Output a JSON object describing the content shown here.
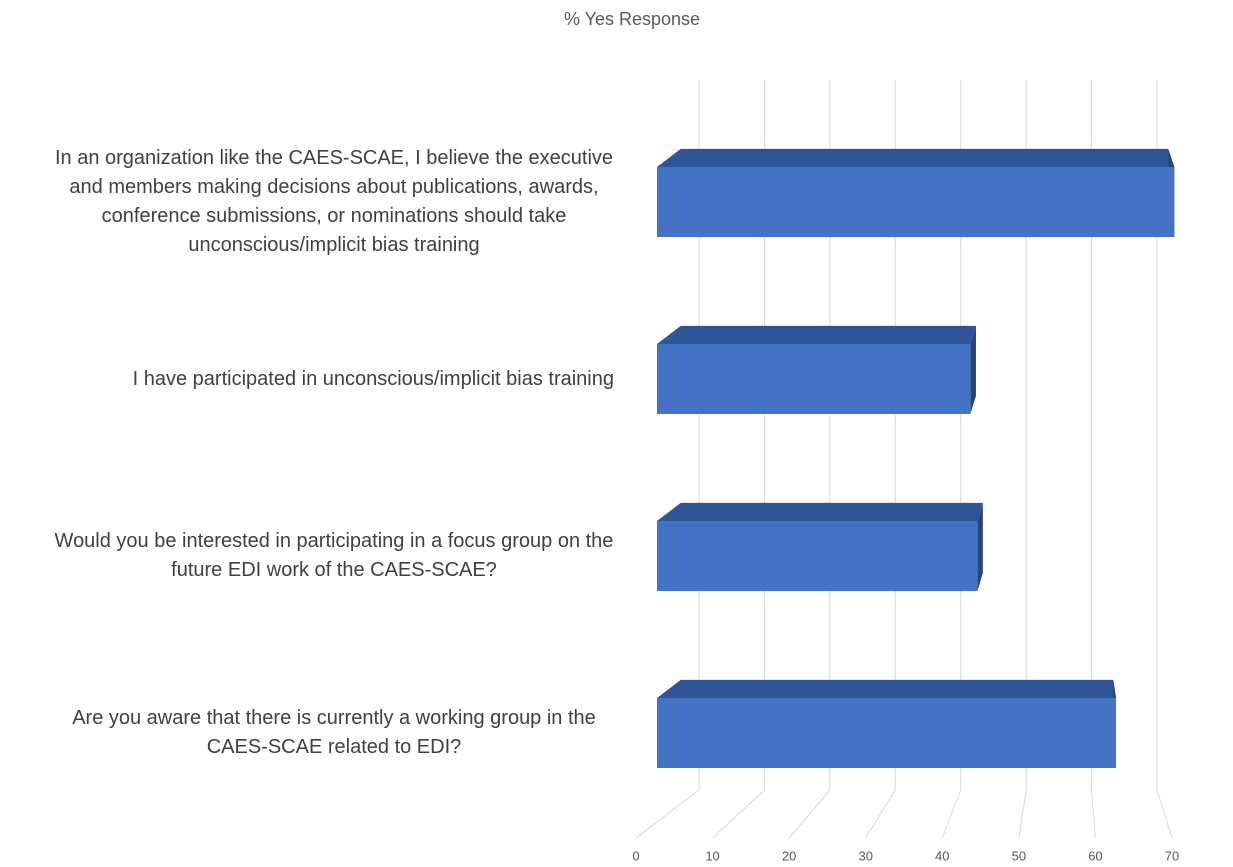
{
  "chart_data": {
    "type": "bar3d_horizontal",
    "title": "% Yes Response",
    "categories": [
      "In an organization like the CAES-SCAE, I believe the executive and members making decisions about publications, awards, conference submissions, or nominations should take unconscious/implicit bias training",
      "I have participated in unconscious/implicit bias training",
      "Would you be interested in participating in a focus group on the future EDI work of the CAES-SCAE?",
      "Are you aware that there is currently a working group in the CAES-SCAE related to EDI?"
    ],
    "values": [
      71,
      43,
      44,
      63
    ],
    "color": "#4472c4",
    "top_color": "#2f5597",
    "side_color": "#264478",
    "xlim": [
      0,
      70
    ],
    "xticks": [
      0,
      10,
      20,
      30,
      40,
      50,
      60,
      70
    ],
    "grid": true
  }
}
